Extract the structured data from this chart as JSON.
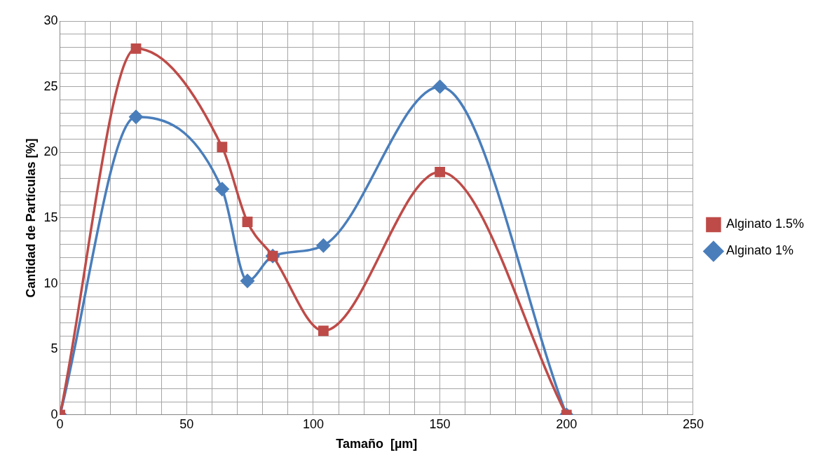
{
  "chart_data": {
    "type": "line",
    "xlabel": "Tamaño  [µm]",
    "ylabel": "Cantidad de Partículas [%]",
    "xlim": [
      0,
      250
    ],
    "ylim": [
      0,
      30
    ],
    "xticks": [
      0,
      {
        "value": 10,
        "label": null
      },
      {
        "value": 20,
        "label": null
      },
      {
        "value": 30,
        "label": null
      },
      {
        "value": 40,
        "label": null
      },
      50,
      {
        "value": 60,
        "label": null
      },
      {
        "value": 70,
        "label": null
      },
      {
        "value": 80,
        "label": null
      },
      {
        "value": 90,
        "label": null
      },
      100,
      {
        "value": 110,
        "label": null
      },
      {
        "value": 120,
        "label": null
      },
      {
        "value": 130,
        "label": null
      },
      {
        "value": 140,
        "label": null
      },
      150,
      {
        "value": 160,
        "label": null
      },
      {
        "value": 170,
        "label": null
      },
      {
        "value": 180,
        "label": null
      },
      {
        "value": 190,
        "label": null
      },
      200,
      {
        "value": 210,
        "label": null
      },
      {
        "value": 220,
        "label": null
      },
      {
        "value": 230,
        "label": null
      },
      {
        "value": 240,
        "label": null
      },
      250
    ],
    "yticks": [
      0,
      {
        "value": 1,
        "label": null
      },
      {
        "value": 2,
        "label": null
      },
      {
        "value": 3,
        "label": null
      },
      {
        "value": 4,
        "label": null
      },
      5,
      {
        "value": 6,
        "label": null
      },
      {
        "value": 7,
        "label": null
      },
      {
        "value": 8,
        "label": null
      },
      {
        "value": 9,
        "label": null
      },
      10,
      {
        "value": 11,
        "label": null
      },
      {
        "value": 12,
        "label": null
      },
      {
        "value": 13,
        "label": null
      },
      {
        "value": 14,
        "label": null
      },
      15,
      {
        "value": 16,
        "label": null
      },
      {
        "value": 17,
        "label": null
      },
      {
        "value": 18,
        "label": null
      },
      {
        "value": 19,
        "label": null
      },
      20,
      {
        "value": 21,
        "label": null
      },
      {
        "value": 22,
        "label": null
      },
      {
        "value": 23,
        "label": null
      },
      {
        "value": 24,
        "label": null
      },
      25,
      {
        "value": 26,
        "label": null
      },
      {
        "value": 27,
        "label": null
      },
      {
        "value": 28,
        "label": null
      },
      {
        "value": 29,
        "label": null
      },
      30
    ],
    "grid": true,
    "legend": "right",
    "line_style": "solid",
    "series": [
      {
        "name": "Alginato 1%",
        "color": "#4a7ebb",
        "marker": "diamond",
        "x": [
          0,
          30,
          64,
          74,
          84,
          104,
          150,
          200
        ],
        "values": [
          0,
          22.7,
          17.2,
          10.2,
          12.1,
          12.9,
          25,
          0
        ]
      },
      {
        "name": "Alginato 1.5%",
        "color": "#be4b48",
        "marker": "square",
        "x": [
          0,
          30,
          64,
          74,
          84,
          104,
          150,
          200
        ],
        "values": [
          0,
          27.9,
          20.4,
          14.7,
          12.1,
          6.4,
          18.5,
          0
        ]
      }
    ]
  }
}
